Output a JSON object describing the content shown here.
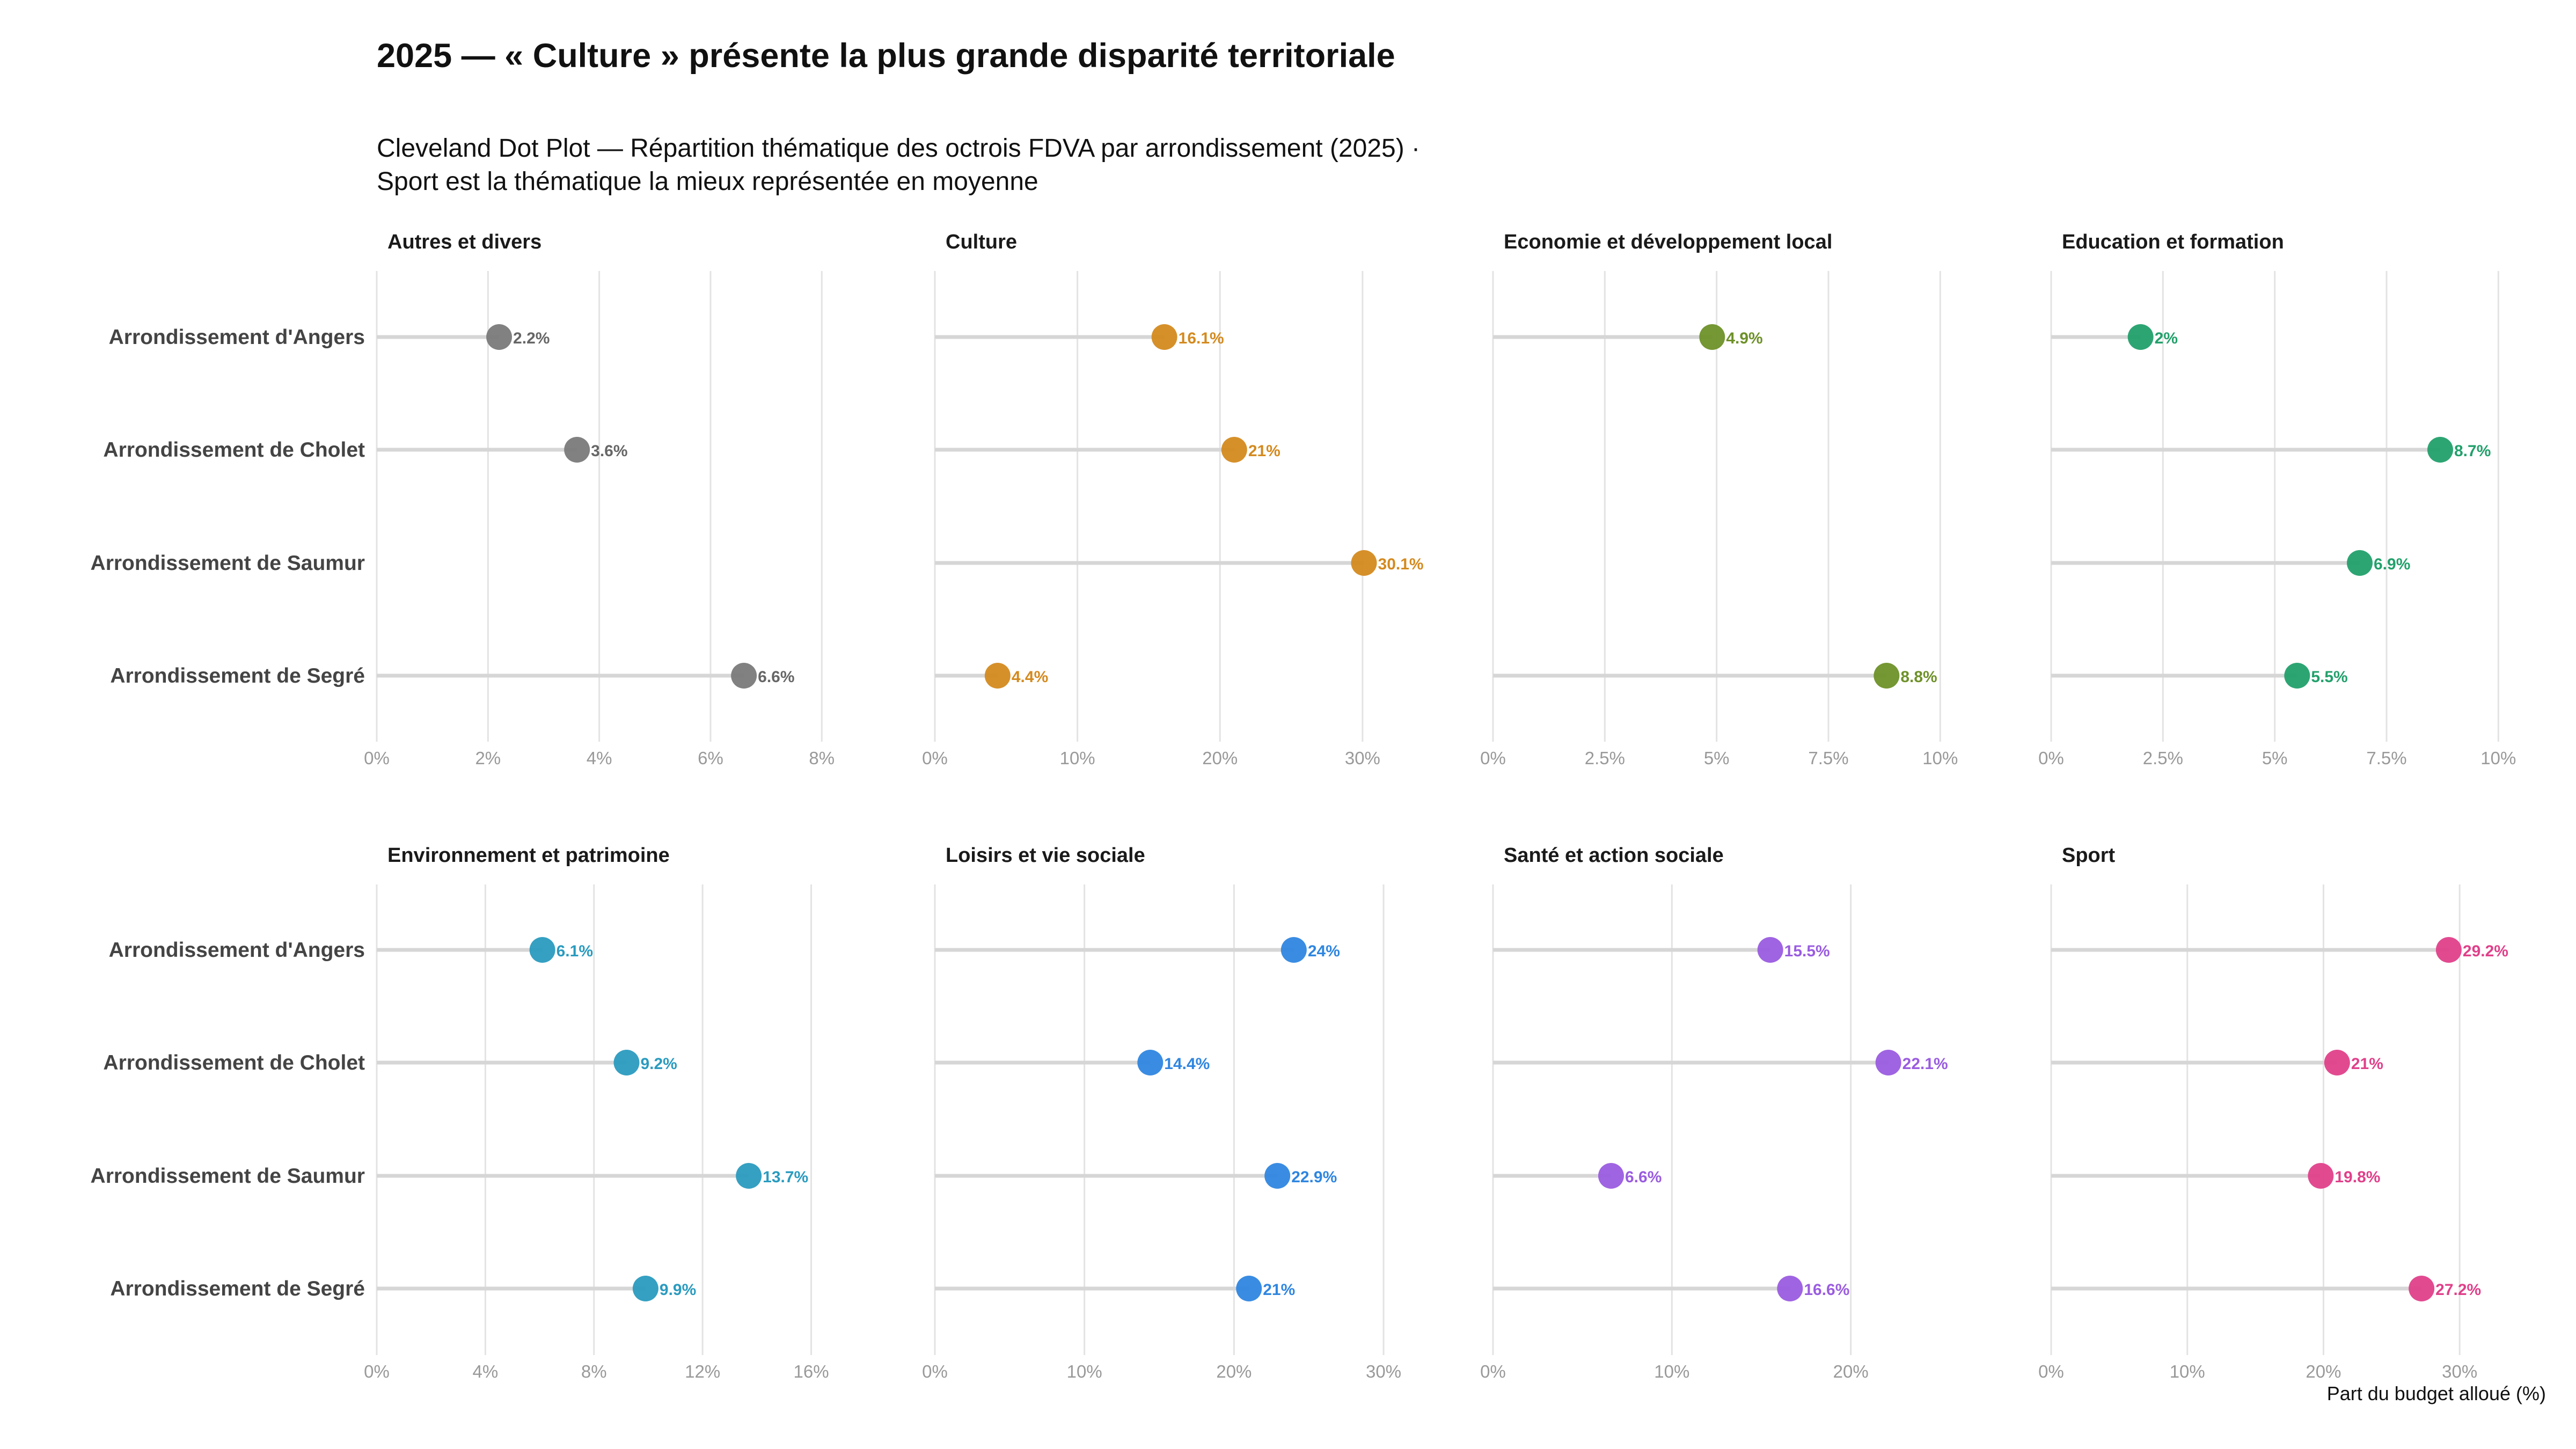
{
  "title": "2025 — « Culture » présente la plus grande disparité territoriale",
  "subtitle": "Cleveland Dot Plot — Répartition thématique des octrois FDVA par arrondissement (2025) · Sport est la thématique la mieux représentée en moyenne",
  "x_axis_caption": "Part du budget alloué (%)",
  "colors": {
    "grid": "#e3e3e3",
    "segment": "#d6d6d6",
    "row_label": "#444444",
    "tick": "#999999",
    "facet_title": "#1a1a1a"
  },
  "chart_data": {
    "type": "dot",
    "rows": [
      "Arrondissement d'Angers",
      "Arrondissement de Cholet",
      "Arrondissement de Saumur",
      "Arrondissement de Segré"
    ],
    "panels": [
      {
        "title": "Autres et divers",
        "color": "#7a7a7a",
        "label_color": "#666666",
        "xlim": [
          0,
          8.2
        ],
        "ticks": [
          0,
          2,
          4,
          6,
          8
        ],
        "tick_labels": [
          "0%",
          "2%",
          "4%",
          "6%",
          "8%"
        ],
        "values": [
          2.2,
          3.6,
          null,
          6.6
        ],
        "labels": [
          "2.2%",
          "3.6%",
          null,
          "6.6%"
        ]
      },
      {
        "title": "Culture",
        "color": "#d48a1f",
        "label_color": "#d48a1f",
        "xlim": [
          0,
          32
        ],
        "ticks": [
          0,
          10,
          20,
          30
        ],
        "tick_labels": [
          "0%",
          "10%",
          "20%",
          "30%"
        ],
        "values": [
          16.1,
          21,
          30.1,
          4.4
        ],
        "labels": [
          "16.1%",
          "21%",
          "30.1%",
          "4.4%"
        ]
      },
      {
        "title": "Economie et développement local",
        "color": "#6e9129",
        "label_color": "#6e9129",
        "xlim": [
          0,
          10.2
        ],
        "ticks": [
          0,
          2.5,
          5,
          7.5,
          10
        ],
        "tick_labels": [
          "0%",
          "2.5%",
          "5%",
          "7.5%",
          "10%"
        ],
        "values": [
          4.9,
          null,
          null,
          8.8
        ],
        "labels": [
          "4.9%",
          null,
          null,
          "8.8%"
        ]
      },
      {
        "title": "Education et formation",
        "color": "#22a06b",
        "label_color": "#22a06b",
        "xlim": [
          0,
          10.2
        ],
        "ticks": [
          0,
          2.5,
          5,
          7.5,
          10
        ],
        "tick_labels": [
          "0%",
          "2.5%",
          "5%",
          "7.5%",
          "10%"
        ],
        "values": [
          2,
          8.7,
          6.9,
          5.5
        ],
        "labels": [
          "2%",
          "8.7%",
          "6.9%",
          "5.5%"
        ]
      },
      {
        "title": "Environnement et patrimoine",
        "color": "#2a9bbf",
        "label_color": "#2a9bbf",
        "xlim": [
          0,
          16.8
        ],
        "ticks": [
          0,
          4,
          8,
          12,
          16
        ],
        "tick_labels": [
          "0%",
          "4%",
          "8%",
          "12%",
          "16%"
        ],
        "values": [
          6.1,
          9.2,
          13.7,
          9.9
        ],
        "labels": [
          "6.1%",
          "9.2%",
          "13.7%",
          "9.9%"
        ]
      },
      {
        "title": "Loisirs et vie sociale",
        "color": "#2f86e0",
        "label_color": "#2f86e0",
        "xlim": [
          0,
          30.5
        ],
        "ticks": [
          0,
          10,
          20,
          30
        ],
        "tick_labels": [
          "0%",
          "10%",
          "20%",
          "30%"
        ],
        "values": [
          24,
          14.4,
          22.9,
          21
        ],
        "labels": [
          "24%",
          "14.4%",
          "22.9%",
          "21%"
        ]
      },
      {
        "title": "Santé et action sociale",
        "color": "#9a5ce0",
        "label_color": "#9a5ce0",
        "xlim": [
          0,
          25.5
        ],
        "ticks": [
          0,
          10,
          20
        ],
        "tick_labels": [
          "0%",
          "10%",
          "20%"
        ],
        "values": [
          15.5,
          22.1,
          6.6,
          16.6
        ],
        "labels": [
          "15.5%",
          "22.1%",
          "6.6%",
          "16.6%"
        ]
      },
      {
        "title": "Sport",
        "color": "#e0408a",
        "label_color": "#e0408a",
        "xlim": [
          0,
          33.5
        ],
        "ticks": [
          0,
          10,
          20,
          30
        ],
        "tick_labels": [
          "0%",
          "10%",
          "20%",
          "30%"
        ],
        "values": [
          29.2,
          21,
          19.8,
          27.2
        ],
        "labels": [
          "29.2%",
          "21%",
          "19.8%",
          "27.2%"
        ]
      }
    ]
  }
}
